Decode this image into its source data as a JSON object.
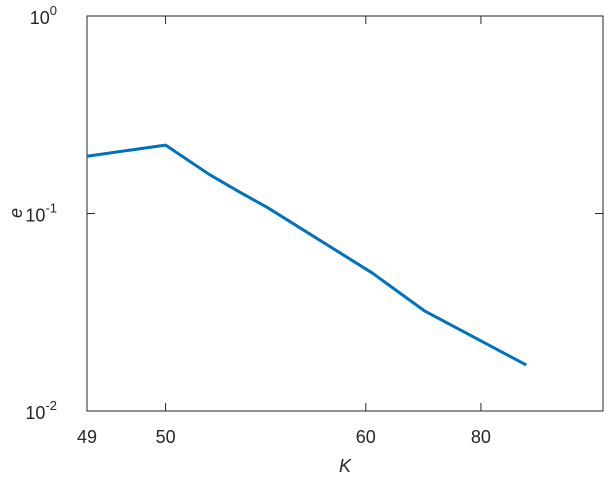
{
  "chart_data": {
    "type": "line",
    "x_label": "K",
    "y_label": "e",
    "x": [
      1,
      1.42,
      1.73,
      1.98,
      2.24,
      3.57,
      4.52,
      7.1
    ],
    "series": [
      {
        "color": "#0072bd",
        "values": [
          0.195,
          0.222,
          0.157,
          0.128,
          0.107,
          0.05,
          0.032,
          0.0171
        ]
      }
    ],
    "x_log": true,
    "y_log": true,
    "xlim": [
      1,
      10
    ],
    "ylim": [
      0.01,
      1
    ],
    "xticks": [
      {
        "value": 1,
        "label": "49"
      },
      {
        "value": 1.42,
        "label": "50"
      },
      {
        "value": 3.47,
        "label": "60"
      },
      {
        "value": 5.8,
        "label": "80"
      }
    ],
    "yticks": [
      {
        "value": 0.01,
        "label": "10",
        "exponent": "-2"
      },
      {
        "value": 0.1,
        "label": "10",
        "exponent": "-1"
      },
      {
        "value": 1,
        "label": "10",
        "exponent": "0"
      }
    ]
  }
}
